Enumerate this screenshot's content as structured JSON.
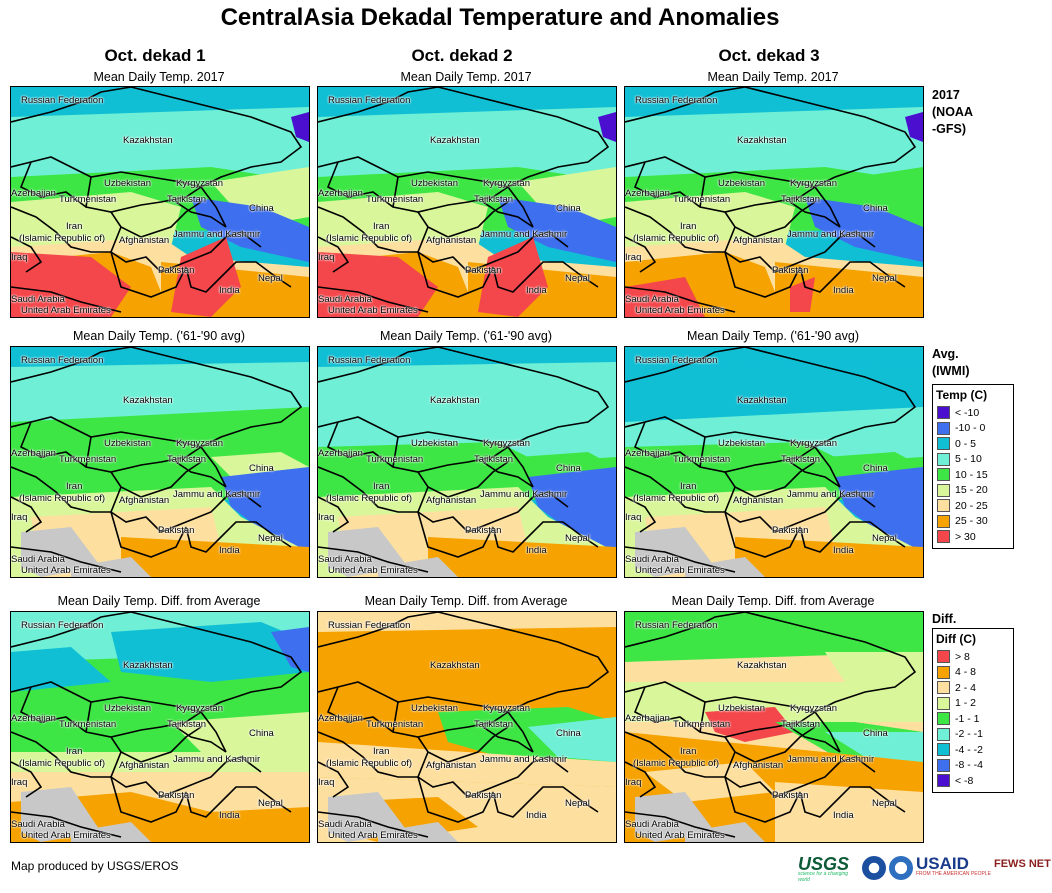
{
  "title": "CentralAsia Dekadal Temperature and Anomalies",
  "columns": [
    "Oct. dekad 1",
    "Oct. dekad 2",
    "Oct. dekad 3"
  ],
  "rows": [
    {
      "panel_title": "Mean Daily Temp. 2017",
      "side_label": "2017\n(NOAA\n-GFS)"
    },
    {
      "panel_title": "Mean Daily Temp. ('61-'90 avg)",
      "side_label": "Avg.\n(IWMI)"
    },
    {
      "panel_title": "Mean Daily Temp. Diff. from Average",
      "side_label": "Diff."
    }
  ],
  "map_labels": {
    "russia": "Russian Federation",
    "kazakhstan": "Kazakhstan",
    "uzbekistan": "Uzbekistan",
    "kyrgyzstan": "Kyrgyzstan",
    "tajikistan": "Tajikistan",
    "azerbaijan": "Azerbaijan",
    "turkmenistan": "Turkmenistan",
    "china": "China",
    "iran": "Iran",
    "iran2": "(Islamic Republic of)",
    "afghanistan": "Afghanistan",
    "jammu": "Jammu and Kashmir",
    "iraq": "Iraq",
    "pakistan": "Pakistan",
    "nepal": "Nepal",
    "india": "India",
    "saudi": "Saudi Arabia",
    "uae": "United Arab Emirates"
  },
  "legend_temp": {
    "title": "Temp (C)",
    "items": [
      {
        "label": "< -10",
        "color": "#4b0fcf"
      },
      {
        "label": "-10 - 0",
        "color": "#3d6fef"
      },
      {
        "label": "0 - 5",
        "color": "#11bfd5"
      },
      {
        "label": "5 - 10",
        "color": "#6ff0d6"
      },
      {
        "label": "10 - 15",
        "color": "#3ee645"
      },
      {
        "label": "15 - 20",
        "color": "#d9f79a"
      },
      {
        "label": "20 - 25",
        "color": "#fde0a0"
      },
      {
        "label": "25 - 30",
        "color": "#f6a200"
      },
      {
        "label": "> 30",
        "color": "#f4474b"
      }
    ]
  },
  "legend_diff": {
    "title": "Diff (C)",
    "items": [
      {
        "label": "> 8",
        "color": "#f4474b"
      },
      {
        "label": "4 - 8",
        "color": "#f6a200"
      },
      {
        "label": "2 - 4",
        "color": "#fde0a0"
      },
      {
        "label": "1 - 2",
        "color": "#d9f79a"
      },
      {
        "label": "-1 - 1",
        "color": "#3ee645"
      },
      {
        "label": "-2 - -1",
        "color": "#6ff0d6"
      },
      {
        "label": "-4 - -2",
        "color": "#11bfd5"
      },
      {
        "label": "-8 - -4",
        "color": "#3d6fef"
      },
      {
        "label": "< -8",
        "color": "#4b0fcf"
      }
    ]
  },
  "footer": "Map produced by USGS/EROS",
  "logos": {
    "usgs": "USGS",
    "usgs_tag": "science for a changing world",
    "usaid": "USAID",
    "usaid_tag": "FROM THE AMERICAN PEOPLE",
    "fews": "FEWS NET"
  }
}
